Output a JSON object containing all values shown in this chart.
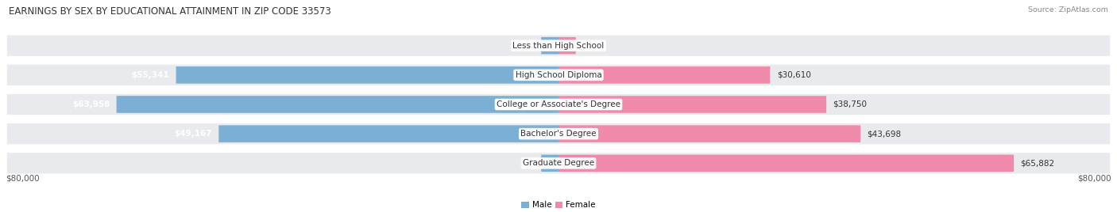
{
  "title": "EARNINGS BY SEX BY EDUCATIONAL ATTAINMENT IN ZIP CODE 33573",
  "source": "Source: ZipAtlas.com",
  "categories": [
    "Less than High School",
    "High School Diploma",
    "College or Associate's Degree",
    "Bachelor's Degree",
    "Graduate Degree"
  ],
  "male_values": [
    0,
    55341,
    63958,
    49167,
    0
  ],
  "female_values": [
    0,
    30610,
    38750,
    43698,
    65882
  ],
  "male_color": "#7bafd4",
  "female_color": "#f08aaa",
  "row_bg_color": "#e8eaed",
  "max_value": 80000,
  "x_tick_left": "$80,000",
  "x_tick_right": "$80,000",
  "title_fontsize": 8.5,
  "label_fontsize": 7.5,
  "cat_fontsize": 7.5,
  "axis_fontsize": 7.5,
  "background_color": "#ffffff",
  "zero_stub": 2500
}
